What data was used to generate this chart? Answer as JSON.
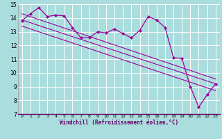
{
  "xlabel": "Windchill (Refroidissement éolien,°C)",
  "bg_color": "#aadddd",
  "grid_color": "#ffffff",
  "line_color": "#990099",
  "xlim": [
    -0.5,
    23.5
  ],
  "ylim": [
    7,
    15
  ],
  "xticks": [
    0,
    1,
    2,
    3,
    4,
    5,
    6,
    7,
    8,
    9,
    10,
    11,
    12,
    13,
    14,
    15,
    16,
    17,
    18,
    19,
    20,
    21,
    22,
    23
  ],
  "yticks": [
    7,
    8,
    9,
    10,
    11,
    12,
    13,
    14,
    15
  ],
  "line1_x": [
    0,
    1,
    2,
    3,
    4,
    5,
    6,
    7,
    8,
    9,
    10,
    11,
    12,
    13,
    14,
    15,
    16,
    17,
    18,
    19,
    20,
    21,
    22,
    23
  ],
  "line1_y": [
    13.8,
    14.3,
    14.75,
    14.1,
    14.2,
    14.15,
    13.3,
    12.55,
    12.55,
    13.0,
    12.9,
    13.2,
    12.85,
    12.55,
    13.1,
    14.1,
    13.85,
    13.3,
    11.1,
    11.05,
    9.0,
    7.5,
    8.4,
    9.2
  ],
  "line2_x": [
    0,
    23
  ],
  "line2_y": [
    13.85,
    9.2
  ],
  "line3_x": [
    0,
    23
  ],
  "line3_y": [
    14.3,
    9.55
  ],
  "line4_x": [
    0,
    23
  ],
  "line4_y": [
    13.4,
    8.7
  ]
}
